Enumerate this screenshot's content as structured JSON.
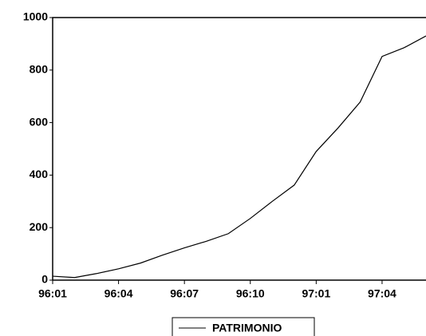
{
  "chart_data": {
    "type": "line",
    "categories": [
      "96:01",
      null,
      null,
      "96:04",
      null,
      null,
      "96:07",
      null,
      null,
      "96:10",
      null,
      null,
      "97:01",
      null,
      null,
      "97:04",
      null,
      null
    ],
    "series": [
      {
        "name": "PATRIMONIO",
        "color": "#000000",
        "values": [
          15,
          10,
          25,
          43,
          65,
          95,
          123,
          148,
          177,
          235,
          300,
          362,
          490,
          580,
          678,
          852,
          885,
          930
        ]
      }
    ],
    "ylim": [
      0,
      1000
    ],
    "yticks": [
      0,
      200,
      400,
      600,
      800,
      1000
    ],
    "grid": false,
    "legend": "bottom"
  }
}
